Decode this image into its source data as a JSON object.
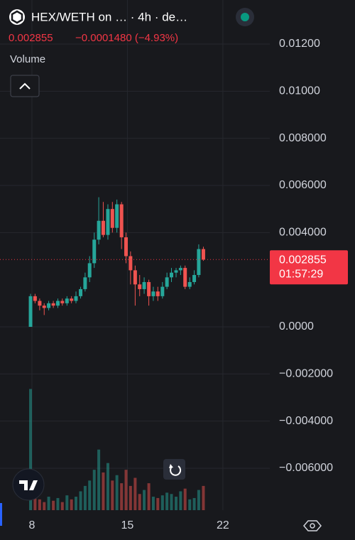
{
  "chart_data": {
    "type": "candlestick",
    "title": "HEX/WETH on … · 4h · de…",
    "last_price": 0.002855,
    "change_label": "−0.0001480 (−4.93%)",
    "volume_label": "Volume",
    "countdown": "01:57:29",
    "up_color": "#26a69a",
    "down_color": "#ef5350",
    "grid": true,
    "x": [
      7.9,
      8.23,
      8.57,
      8.9,
      9.23,
      9.57,
      9.9,
      10.23,
      10.57,
      10.9,
      11.23,
      11.57,
      11.9,
      12.23,
      12.57,
      12.9,
      13.23,
      13.57,
      13.9,
      14.23,
      14.57,
      14.9,
      15.23,
      15.57,
      15.9,
      16.23,
      16.57,
      16.9,
      17.23,
      17.57,
      17.9,
      18.23,
      18.57,
      18.9,
      19.23,
      19.57,
      19.9,
      20.23,
      20.57
    ],
    "open": [
      0,
      0.0013,
      0.0011,
      0.0009,
      0.0008,
      0.001,
      0.0009,
      0.0011,
      0.001,
      0.0012,
      0.0011,
      0.0013,
      0.0016,
      0.0021,
      0.0027,
      0.0037,
      0.0045,
      0.0039,
      0.005,
      0.0042,
      0.0052,
      0.0038,
      0.003,
      0.0024,
      0.0018,
      0.0016,
      0.0019,
      0.0013,
      0.0015,
      0.0013,
      0.0017,
      0.0021,
      0.0023,
      0.0024,
      0.0025,
      0.0017,
      0.0019,
      0.0022,
      0.0033
    ],
    "high": [
      0.0014,
      0.0014,
      0.0012,
      0.001,
      0.0011,
      0.0011,
      0.0012,
      0.0012,
      0.0013,
      0.0013,
      0.0015,
      0.0017,
      0.0023,
      0.003,
      0.004,
      0.0055,
      0.0053,
      0.0052,
      0.0053,
      0.0054,
      0.0053,
      0.004,
      0.0032,
      0.0026,
      0.0022,
      0.0021,
      0.002,
      0.0017,
      0.0017,
      0.0019,
      0.0023,
      0.0025,
      0.0025,
      0.0026,
      0.0026,
      0.0021,
      0.0024,
      0.0035,
      0.0034
    ],
    "low": [
      0,
      0.001,
      0.0007,
      0.0005,
      0.0007,
      0.0008,
      0.0008,
      0.0009,
      0.0009,
      0.001,
      0.001,
      0.0012,
      0.0015,
      0.0019,
      0.0025,
      0.0035,
      0.0038,
      0.0037,
      0.004,
      0.004,
      0.0033,
      0.0027,
      0.0018,
      0.0009,
      0.0013,
      0.0014,
      0.0009,
      0.0011,
      0.0011,
      0.0012,
      0.0016,
      0.0019,
      0.0021,
      0.0022,
      0.0016,
      0.0016,
      0.0018,
      0.0021,
      0.0028
    ],
    "close": [
      0.0013,
      0.0011,
      0.0009,
      0.0008,
      0.001,
      0.0009,
      0.0011,
      0.001,
      0.0012,
      0.0011,
      0.0013,
      0.0016,
      0.0021,
      0.0027,
      0.0037,
      0.0045,
      0.0039,
      0.005,
      0.0042,
      0.0052,
      0.0038,
      0.003,
      0.0024,
      0.0018,
      0.0016,
      0.0019,
      0.0013,
      0.0015,
      0.0013,
      0.0017,
      0.0021,
      0.0023,
      0.0024,
      0.0025,
      0.0017,
      0.0019,
      0.0022,
      0.0033,
      0.002855
    ],
    "volume": [
      90,
      12,
      8,
      6,
      10,
      7,
      9,
      6,
      11,
      8,
      10,
      14,
      18,
      22,
      30,
      45,
      28,
      35,
      22,
      26,
      20,
      30,
      18,
      24,
      12,
      15,
      20,
      10,
      9,
      11,
      13,
      12,
      10,
      14,
      16,
      8,
      9,
      15,
      18
    ],
    "volume_ylim": [
      0,
      95
    ],
    "xlim": [
      5.66,
      25.44
    ],
    "xticks": [
      8,
      15,
      22
    ],
    "ylim": [
      -0.00778,
      0.01387
    ],
    "yticks": [
      {
        "value": 0.012,
        "label": "0.01200"
      },
      {
        "value": 0.01,
        "label": "0.01000"
      },
      {
        "value": 0.008,
        "label": "0.008000"
      },
      {
        "value": 0.006,
        "label": "0.006000"
      },
      {
        "value": 0.004,
        "label": "0.004000"
      },
      {
        "value": 0,
        "label": "0.0000"
      },
      {
        "value": -0.002,
        "label": "−0.002000"
      },
      {
        "value": -0.004,
        "label": "−0.004000"
      },
      {
        "value": -0.006,
        "label": "−0.006000"
      }
    ]
  }
}
